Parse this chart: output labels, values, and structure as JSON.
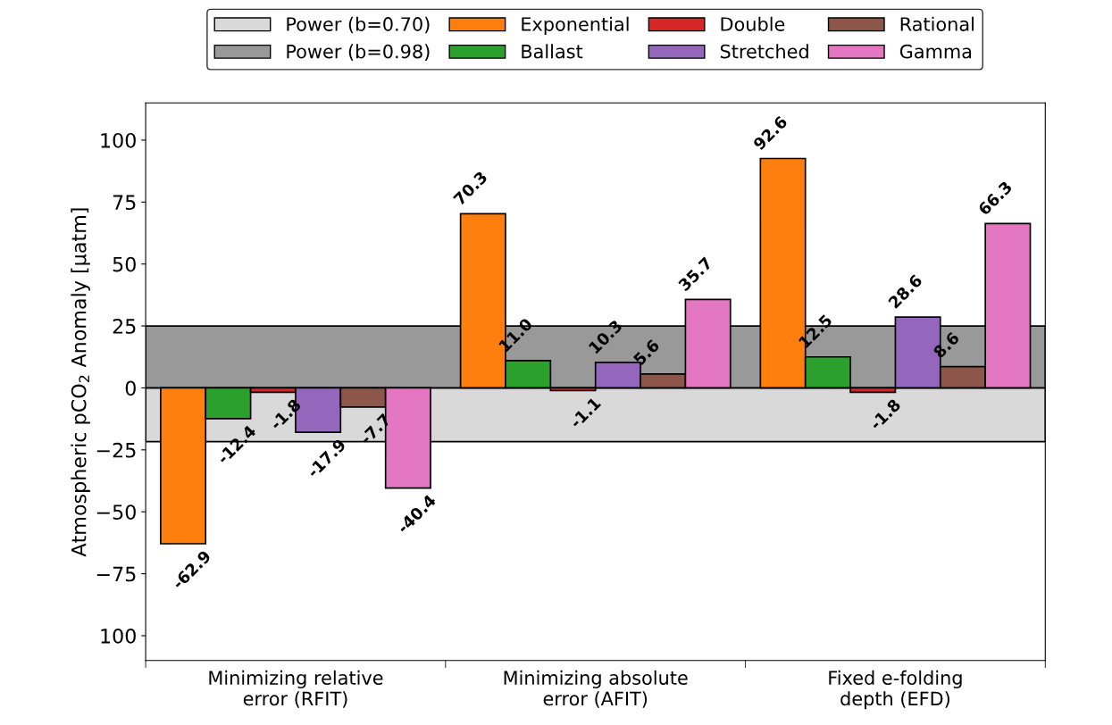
{
  "chart_data": {
    "type": "bar",
    "ylabel": "Atmospheric pCO$_{2}$ Anomaly [μatm]",
    "categories": [
      "Minimizing relative\nerror (RFIT)",
      "Minimizing absolute\nerror (AFIT)",
      "Fixed e-folding\ndepth (EFD)"
    ],
    "series": [
      {
        "name": "Exponential",
        "color": "#ff7f0e",
        "values": [
          -62.9,
          70.3,
          92.6
        ],
        "value_labels": [
          "-62.9",
          "70.3",
          "92.6"
        ]
      },
      {
        "name": "Ballast",
        "color": "#2ca02c",
        "values": [
          -12.4,
          11.0,
          12.5
        ],
        "value_labels": [
          "-12.4",
          "11.0",
          "12.5"
        ]
      },
      {
        "name": "Double",
        "color": "#d62728",
        "values": [
          -1.8,
          -1.1,
          -1.8
        ],
        "value_labels": [
          "-1.8",
          "-1.1",
          "-1.8"
        ]
      },
      {
        "name": "Stretched",
        "color": "#9467bd",
        "values": [
          -17.9,
          10.3,
          28.6
        ],
        "value_labels": [
          "-17.9",
          "10.3",
          "28.6"
        ]
      },
      {
        "name": "Rational",
        "color": "#8c564b",
        "values": [
          -7.7,
          5.6,
          8.6
        ],
        "value_labels": [
          "-7.7",
          "5.6",
          "8.6"
        ]
      },
      {
        "name": "Gamma",
        "color": "#e377c2",
        "values": [
          -40.4,
          35.7,
          66.3
        ],
        "value_labels": [
          "-40.4",
          "35.7",
          "66.3"
        ]
      }
    ],
    "bands": [
      {
        "axis": "y",
        "from": -21.7,
        "to": 0,
        "label": "Power (b=0.70)",
        "color": "#d9d9d9"
      },
      {
        "axis": "y",
        "from": 0,
        "to": 25,
        "label": "Power (b=0.98)",
        "color": "#999999"
      }
    ],
    "ylim": [
      -110,
      115
    ],
    "yticks": [
      {
        "value": -100,
        "label": "100"
      },
      {
        "value": -75,
        "label": "−75"
      },
      {
        "value": -50,
        "label": "−50"
      },
      {
        "value": -25,
        "label": "−25"
      },
      0,
      25,
      50,
      75,
      100
    ],
    "grid": false,
    "legend": "top"
  }
}
